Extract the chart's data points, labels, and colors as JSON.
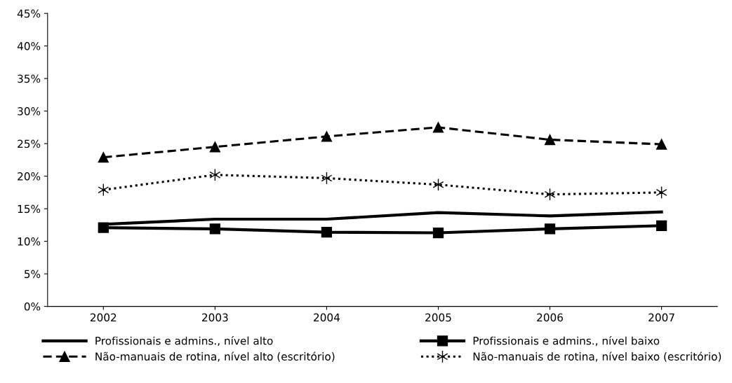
{
  "chart_data": {
    "type": "line",
    "categories": [
      "2002",
      "2003",
      "2004",
      "2005",
      "2006",
      "2007"
    ],
    "series": [
      {
        "name": "Profissionais e admins., nível alto",
        "color": "#000000",
        "marker": "none",
        "line_style": "solid",
        "values": [
          12.6,
          13.4,
          13.4,
          14.4,
          13.9,
          14.5
        ]
      },
      {
        "name": "Profissionais e admins., nível baixo",
        "color": "#000000",
        "marker": "square",
        "line_style": "solid",
        "values": [
          12.1,
          11.9,
          11.4,
          11.3,
          11.9,
          12.4
        ]
      },
      {
        "name": "Não-manuais de rotina, nível alto (escritório)",
        "color": "#000000",
        "marker": "triangle",
        "line_style": "dashed",
        "values": [
          22.9,
          24.5,
          26.1,
          27.5,
          25.6,
          24.9
        ]
      },
      {
        "name": "Não-manuais de rotina, nível baixo (escritório)",
        "color": "#000000",
        "marker": "cross",
        "line_style": "dotted",
        "values": [
          17.9,
          20.2,
          19.7,
          18.7,
          17.2,
          17.5
        ]
      }
    ],
    "ylim": [
      0,
      45
    ],
    "yticks": [
      {
        "value": 0,
        "label": "0%"
      },
      {
        "value": 5,
        "label": "5%"
      },
      {
        "value": 10,
        "label": "10%"
      },
      {
        "value": 15,
        "label": "15%"
      },
      {
        "value": 20,
        "label": "20%"
      },
      {
        "value": 25,
        "label": "25%"
      },
      {
        "value": 30,
        "label": "30%"
      },
      {
        "value": 35,
        "label": "35%"
      },
      {
        "value": 40,
        "label": "40%"
      },
      {
        "value": 45,
        "label": "45%"
      }
    ],
    "grid": false,
    "legend": "bottom"
  }
}
